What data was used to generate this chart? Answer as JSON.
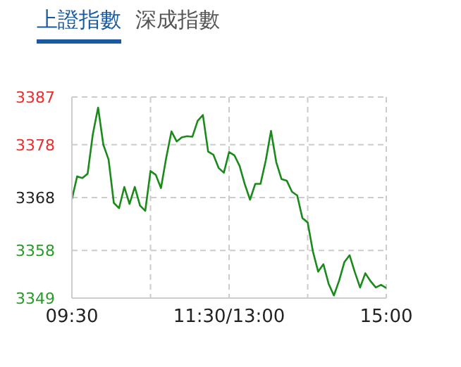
{
  "chart_data": {
    "type": "line",
    "title": "上證指數",
    "annotations": [
      "深成指數"
    ],
    "categories": [
      "09:30",
      null,
      null,
      null,
      null,
      null,
      null,
      null,
      null,
      null,
      null,
      null,
      null,
      null,
      null,
      null,
      null,
      null,
      null,
      null,
      null,
      null,
      null,
      null,
      null,
      null,
      null,
      null,
      null,
      null,
      "11:30/13:00",
      null,
      null,
      null,
      null,
      null,
      null,
      null,
      null,
      null,
      null,
      null,
      null,
      null,
      null,
      null,
      null,
      null,
      null,
      null,
      null,
      null,
      null,
      null,
      null,
      null,
      null,
      null,
      null,
      null,
      "15:00"
    ],
    "series": [
      {
        "color": "#1a8a1a",
        "values": [
          3367.7,
          3372,
          3371.7,
          3372.5,
          3380,
          3385,
          3378,
          3375.2,
          3367,
          3366,
          3370,
          3366.8,
          3370,
          3366.5,
          3365.5,
          3373,
          3372.3,
          3369.8,
          3375.5,
          3380.5,
          3378.6,
          3379.4,
          3379.6,
          3379.5,
          3382.5,
          3383.6,
          3376.7,
          3376.1,
          3373.6,
          3372.7,
          3376.6,
          3376,
          3374,
          3370.5,
          3367.6,
          3370.6,
          3370.6,
          3375,
          3380.6,
          3374.7,
          3371.5,
          3371.2,
          3369.1,
          3368.4,
          3364.1,
          3363.3,
          3357.8,
          3354,
          3355.4,
          3351.7,
          3349.5,
          3352.3,
          3355.8,
          3357.1,
          3353.9,
          3351,
          3353.7,
          3352.2,
          3351,
          3351.5,
          3350.9
        ]
      }
    ],
    "ylim": [
      3349,
      3387
    ],
    "yticks": [
      3349,
      3358,
      3368,
      3378,
      3387
    ],
    "grid": true,
    "legend": false,
    "marker": "none",
    "line_style": "solid"
  }
}
